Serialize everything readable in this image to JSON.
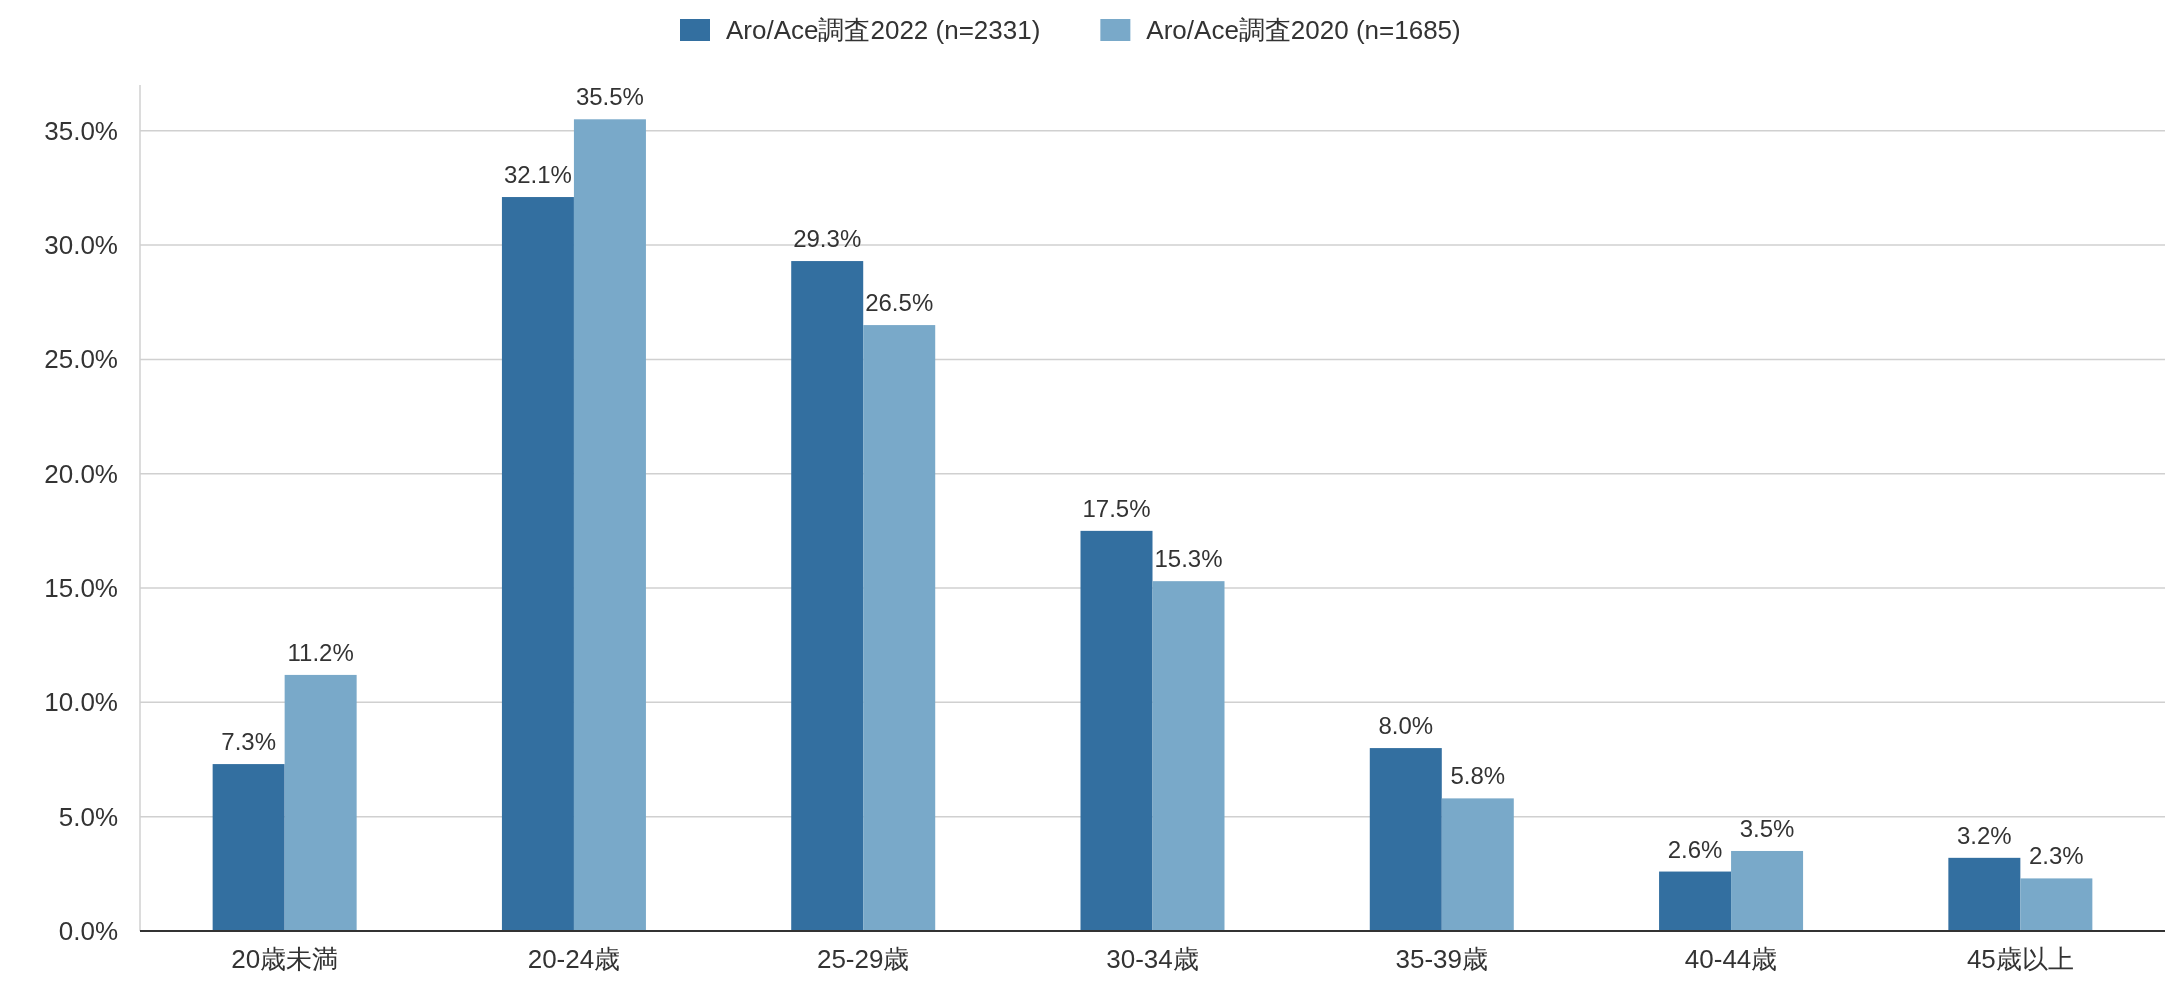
{
  "chart_data": {
    "type": "bar",
    "categories": [
      "20歳未満",
      "20-24歳",
      "25-29歳",
      "30-34歳",
      "35-39歳",
      "40-44歳",
      "45歳以上"
    ],
    "series": [
      {
        "name": "Aro/Ace調査2022 (n=2331)",
        "color": "#336fa0",
        "values": [
          7.3,
          32.1,
          29.3,
          17.5,
          8.0,
          2.6,
          3.2
        ],
        "value_labels": [
          "7.3%",
          "32.1%",
          "29.3%",
          "17.5%",
          "8.0%",
          "2.6%",
          "3.2%"
        ]
      },
      {
        "name": "Aro/Ace調査2020 (n=1685)",
        "color": "#79a9c9",
        "values": [
          11.2,
          35.5,
          26.5,
          15.3,
          5.8,
          3.5,
          2.3
        ],
        "value_labels": [
          "11.2%",
          "35.5%",
          "26.5%",
          "15.3%",
          "5.8%",
          "3.5%",
          "2.3%"
        ]
      }
    ],
    "ylim": [
      0,
      37
    ],
    "yticks": [
      {
        "value": 0,
        "label": "0.0%"
      },
      {
        "value": 5,
        "label": "5.0%"
      },
      {
        "value": 10,
        "label": "10.0%"
      },
      {
        "value": 15,
        "label": "15.0%"
      },
      {
        "value": 20,
        "label": "20.0%"
      },
      {
        "value": 25,
        "label": "25.0%"
      },
      {
        "value": 30,
        "label": "30.0%"
      },
      {
        "value": 35,
        "label": "35.0%"
      }
    ],
    "grid": "y",
    "legend": "top"
  }
}
